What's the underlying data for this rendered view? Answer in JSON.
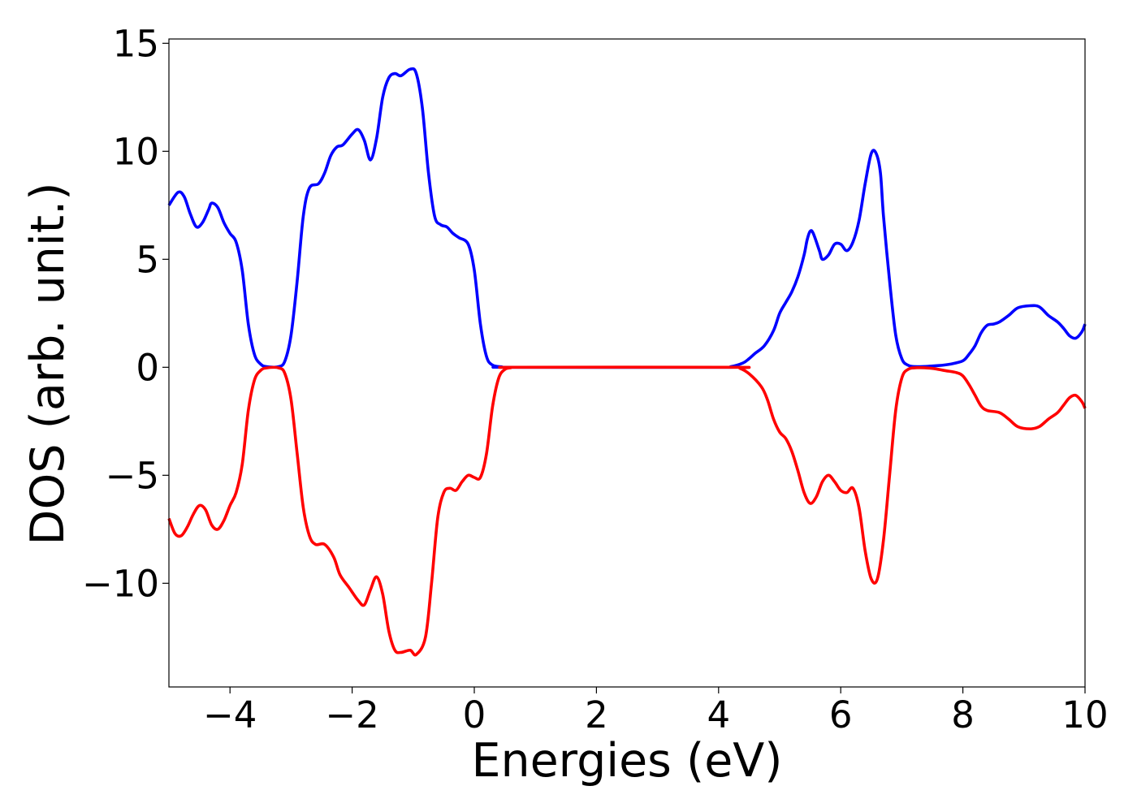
{
  "chart_data": {
    "type": "line",
    "title": "",
    "xlabel": "Energies (eV)",
    "ylabel": "DOS (arb. unit.)",
    "xlim": [
      -5,
      10
    ],
    "ylim": [
      -14.8,
      15.2
    ],
    "xticks": [
      -4,
      -2,
      0,
      2,
      4,
      6,
      8,
      10
    ],
    "xtick_labels": [
      "−4",
      "−2",
      "0",
      "2",
      "4",
      "6",
      "8",
      "10"
    ],
    "yticks": [
      -10,
      -5,
      0,
      5,
      10,
      15
    ],
    "ytick_labels": [
      "−10",
      "−5",
      "0",
      "5",
      "10",
      "15"
    ],
    "grid": false,
    "legend": false,
    "series": [
      {
        "color": "#0000ff",
        "points": [
          [
            -5.0,
            7.5
          ],
          [
            -4.85,
            8.1
          ],
          [
            -4.75,
            7.9
          ],
          [
            -4.65,
            7.1
          ],
          [
            -4.55,
            6.5
          ],
          [
            -4.45,
            6.7
          ],
          [
            -4.35,
            7.3
          ],
          [
            -4.3,
            7.6
          ],
          [
            -4.2,
            7.4
          ],
          [
            -4.1,
            6.7
          ],
          [
            -4.0,
            6.2
          ],
          [
            -3.9,
            5.8
          ],
          [
            -3.8,
            4.5
          ],
          [
            -3.7,
            2.0
          ],
          [
            -3.6,
            0.6
          ],
          [
            -3.5,
            0.15
          ],
          [
            -3.4,
            0.03
          ],
          [
            -3.2,
            0.03
          ],
          [
            -3.1,
            0.3
          ],
          [
            -3.0,
            1.5
          ],
          [
            -2.9,
            4.0
          ],
          [
            -2.8,
            7.0
          ],
          [
            -2.7,
            8.3
          ],
          [
            -2.55,
            8.5
          ],
          [
            -2.45,
            9.0
          ],
          [
            -2.35,
            9.8
          ],
          [
            -2.25,
            10.2
          ],
          [
            -2.15,
            10.3
          ],
          [
            -2.0,
            10.8
          ],
          [
            -1.9,
            11.0
          ],
          [
            -1.8,
            10.5
          ],
          [
            -1.7,
            9.6
          ],
          [
            -1.6,
            10.6
          ],
          [
            -1.5,
            12.5
          ],
          [
            -1.4,
            13.4
          ],
          [
            -1.3,
            13.6
          ],
          [
            -1.2,
            13.5
          ],
          [
            -1.05,
            13.8
          ],
          [
            -0.95,
            13.6
          ],
          [
            -0.85,
            12.0
          ],
          [
            -0.75,
            9.0
          ],
          [
            -0.65,
            7.0
          ],
          [
            -0.55,
            6.6
          ],
          [
            -0.45,
            6.5
          ],
          [
            -0.35,
            6.2
          ],
          [
            -0.25,
            6.0
          ],
          [
            -0.1,
            5.7
          ],
          [
            0.0,
            4.5
          ],
          [
            0.1,
            2.0
          ],
          [
            0.2,
            0.5
          ],
          [
            0.3,
            0.1
          ],
          [
            0.45,
            0.02
          ],
          [
            0.6,
            0.0
          ],
          [
            4.0,
            0.0
          ],
          [
            4.2,
            0.03
          ],
          [
            4.4,
            0.2
          ],
          [
            4.5,
            0.4
          ],
          [
            4.6,
            0.65
          ],
          [
            4.75,
            1.0
          ],
          [
            4.9,
            1.7
          ],
          [
            5.0,
            2.5
          ],
          [
            5.1,
            3.0
          ],
          [
            5.2,
            3.5
          ],
          [
            5.3,
            4.2
          ],
          [
            5.4,
            5.2
          ],
          [
            5.45,
            5.9
          ],
          [
            5.5,
            6.3
          ],
          [
            5.55,
            6.2
          ],
          [
            5.65,
            5.4
          ],
          [
            5.7,
            5.0
          ],
          [
            5.8,
            5.2
          ],
          [
            5.9,
            5.7
          ],
          [
            6.0,
            5.7
          ],
          [
            6.1,
            5.4
          ],
          [
            6.2,
            5.8
          ],
          [
            6.3,
            6.8
          ],
          [
            6.4,
            8.5
          ],
          [
            6.5,
            9.9
          ],
          [
            6.58,
            9.9
          ],
          [
            6.65,
            9.0
          ],
          [
            6.7,
            7.0
          ],
          [
            6.8,
            4.0
          ],
          [
            6.9,
            1.5
          ],
          [
            7.0,
            0.4
          ],
          [
            7.1,
            0.1
          ],
          [
            7.25,
            0.03
          ],
          [
            7.6,
            0.08
          ],
          [
            7.8,
            0.15
          ],
          [
            8.0,
            0.3
          ],
          [
            8.1,
            0.6
          ],
          [
            8.2,
            1.0
          ],
          [
            8.3,
            1.6
          ],
          [
            8.4,
            1.95
          ],
          [
            8.5,
            2.0
          ],
          [
            8.6,
            2.1
          ],
          [
            8.75,
            2.4
          ],
          [
            8.9,
            2.75
          ],
          [
            9.1,
            2.85
          ],
          [
            9.25,
            2.8
          ],
          [
            9.4,
            2.4
          ],
          [
            9.55,
            2.1
          ],
          [
            9.65,
            1.8
          ],
          [
            9.75,
            1.45
          ],
          [
            9.85,
            1.35
          ],
          [
            9.95,
            1.65
          ],
          [
            10.0,
            2.0
          ]
        ]
      },
      {
        "color": "#ff0000",
        "points": [
          [
            -5.0,
            -7.0
          ],
          [
            -4.9,
            -7.7
          ],
          [
            -4.8,
            -7.8
          ],
          [
            -4.7,
            -7.4
          ],
          [
            -4.6,
            -6.8
          ],
          [
            -4.5,
            -6.4
          ],
          [
            -4.4,
            -6.6
          ],
          [
            -4.3,
            -7.3
          ],
          [
            -4.2,
            -7.5
          ],
          [
            -4.1,
            -7.1
          ],
          [
            -4.0,
            -6.4
          ],
          [
            -3.9,
            -5.8
          ],
          [
            -3.8,
            -4.5
          ],
          [
            -3.7,
            -2.0
          ],
          [
            -3.6,
            -0.6
          ],
          [
            -3.5,
            -0.15
          ],
          [
            -3.4,
            -0.03
          ],
          [
            -3.2,
            -0.03
          ],
          [
            -3.1,
            -0.3
          ],
          [
            -3.0,
            -1.5
          ],
          [
            -2.9,
            -4.0
          ],
          [
            -2.8,
            -6.5
          ],
          [
            -2.7,
            -7.8
          ],
          [
            -2.6,
            -8.2
          ],
          [
            -2.45,
            -8.2
          ],
          [
            -2.3,
            -8.8
          ],
          [
            -2.2,
            -9.6
          ],
          [
            -2.05,
            -10.2
          ],
          [
            -1.9,
            -10.8
          ],
          [
            -1.8,
            -11.0
          ],
          [
            -1.7,
            -10.3
          ],
          [
            -1.6,
            -9.7
          ],
          [
            -1.5,
            -10.5
          ],
          [
            -1.4,
            -12.2
          ],
          [
            -1.3,
            -13.1
          ],
          [
            -1.2,
            -13.2
          ],
          [
            -1.05,
            -13.1
          ],
          [
            -0.95,
            -13.3
          ],
          [
            -0.8,
            -12.5
          ],
          [
            -0.7,
            -10.0
          ],
          [
            -0.6,
            -7.0
          ],
          [
            -0.5,
            -5.8
          ],
          [
            -0.4,
            -5.6
          ],
          [
            -0.3,
            -5.7
          ],
          [
            -0.2,
            -5.3
          ],
          [
            -0.1,
            -5.0
          ],
          [
            0.0,
            -5.1
          ],
          [
            0.1,
            -5.1
          ],
          [
            0.2,
            -4.0
          ],
          [
            0.3,
            -1.8
          ],
          [
            0.4,
            -0.5
          ],
          [
            0.5,
            -0.1
          ],
          [
            0.6,
            -0.02
          ],
          [
            0.7,
            0.0
          ],
          [
            4.2,
            0.0
          ],
          [
            4.35,
            -0.05
          ],
          [
            4.5,
            -0.3
          ],
          [
            4.7,
            -0.9
          ],
          [
            4.8,
            -1.5
          ],
          [
            4.9,
            -2.4
          ],
          [
            5.0,
            -3.0
          ],
          [
            5.1,
            -3.3
          ],
          [
            5.2,
            -3.9
          ],
          [
            5.3,
            -4.8
          ],
          [
            5.4,
            -5.8
          ],
          [
            5.5,
            -6.3
          ],
          [
            5.6,
            -6.0
          ],
          [
            5.7,
            -5.3
          ],
          [
            5.8,
            -5.0
          ],
          [
            5.9,
            -5.3
          ],
          [
            6.0,
            -5.7
          ],
          [
            6.1,
            -5.8
          ],
          [
            6.2,
            -5.6
          ],
          [
            6.3,
            -6.5
          ],
          [
            6.4,
            -8.5
          ],
          [
            6.5,
            -9.8
          ],
          [
            6.6,
            -9.8
          ],
          [
            6.7,
            -8.0
          ],
          [
            6.8,
            -5.0
          ],
          [
            6.9,
            -2.0
          ],
          [
            7.0,
            -0.5
          ],
          [
            7.1,
            -0.1
          ],
          [
            7.25,
            -0.02
          ],
          [
            7.5,
            -0.05
          ],
          [
            7.7,
            -0.15
          ],
          [
            7.9,
            -0.25
          ],
          [
            8.0,
            -0.4
          ],
          [
            8.1,
            -0.8
          ],
          [
            8.2,
            -1.3
          ],
          [
            8.3,
            -1.8
          ],
          [
            8.4,
            -2.0
          ],
          [
            8.6,
            -2.1
          ],
          [
            8.75,
            -2.4
          ],
          [
            8.9,
            -2.75
          ],
          [
            9.1,
            -2.85
          ],
          [
            9.25,
            -2.75
          ],
          [
            9.4,
            -2.4
          ],
          [
            9.55,
            -2.1
          ],
          [
            9.65,
            -1.75
          ],
          [
            9.75,
            -1.4
          ],
          [
            9.85,
            -1.3
          ],
          [
            9.95,
            -1.6
          ],
          [
            10.0,
            -1.9
          ]
        ]
      }
    ]
  }
}
